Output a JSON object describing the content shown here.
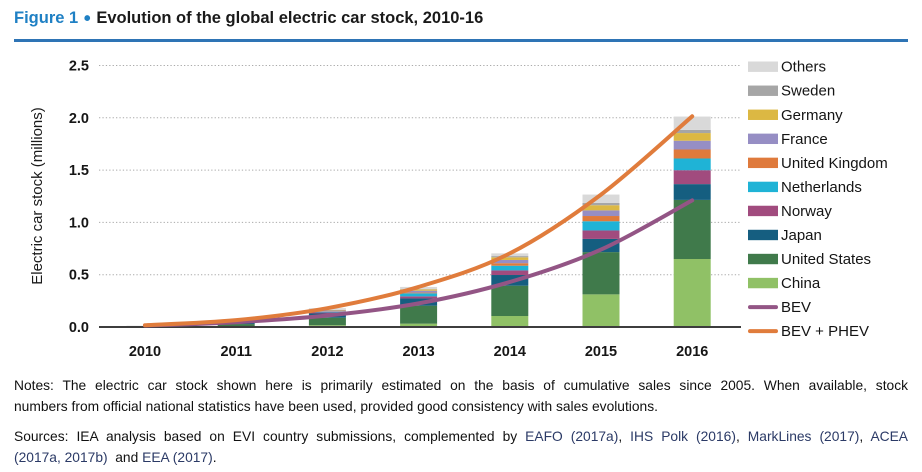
{
  "title": {
    "figure_label": "Figure 1",
    "separator": "•",
    "text": "Evolution of the global electric car stock, 2010-16"
  },
  "accent_colors": {
    "figure_label_blue": "#1F80C4",
    "rule_blue": "#2E74B5"
  },
  "chart_data": {
    "type": "bar",
    "stacked": true,
    "ylabel": "Electric car stock (millions)",
    "categories": [
      "2010",
      "2011",
      "2012",
      "2013",
      "2014",
      "2015",
      "2016"
    ],
    "ylim": [
      0,
      2.5
    ],
    "ytick_step": 0.5,
    "yticks": [
      "0.0",
      "0.5",
      "1.0",
      "1.5",
      "2.0",
      "2.5"
    ],
    "grid": "dotted-horizontal",
    "legend_position": "right",
    "series": [
      {
        "name": "China",
        "color": "#90C166",
        "values": [
          0.001,
          0.007,
          0.017,
          0.032,
          0.105,
          0.312,
          0.65
        ]
      },
      {
        "name": "United States",
        "color": "#407A4B",
        "values": [
          0.004,
          0.021,
          0.072,
          0.172,
          0.29,
          0.404,
          0.565
        ]
      },
      {
        "name": "Japan",
        "color": "#155E80",
        "values": [
          0.003,
          0.016,
          0.04,
          0.069,
          0.102,
          0.126,
          0.151
        ]
      },
      {
        "name": "Norway",
        "color": "#A14B7E",
        "values": [
          0.001,
          0.003,
          0.01,
          0.02,
          0.044,
          0.081,
          0.133
        ]
      },
      {
        "name": "Netherlands",
        "color": "#1FB3D6",
        "values": [
          0.0,
          0.001,
          0.007,
          0.029,
          0.045,
          0.088,
          0.112
        ]
      },
      {
        "name": "United Kingdom",
        "color": "#DF7A3C",
        "values": [
          0.0,
          0.001,
          0.003,
          0.007,
          0.024,
          0.05,
          0.086
        ]
      },
      {
        "name": "France",
        "color": "#968EC4",
        "values": [
          0.0,
          0.003,
          0.009,
          0.018,
          0.031,
          0.054,
          0.084
        ]
      },
      {
        "name": "Germany",
        "color": "#DCB843",
        "values": [
          0.0,
          0.002,
          0.005,
          0.012,
          0.025,
          0.049,
          0.073
        ]
      },
      {
        "name": "Sweden",
        "color": "#A6A6A6",
        "values": [
          0.0,
          0.0,
          0.001,
          0.003,
          0.012,
          0.022,
          0.03
        ]
      },
      {
        "name": "Others",
        "color": "#D9D9D9",
        "values": [
          0.003,
          0.006,
          0.016,
          0.021,
          0.026,
          0.08,
          0.128
        ]
      }
    ],
    "lines": [
      {
        "name": "BEV",
        "color": "#935585",
        "values": [
          0.014,
          0.046,
          0.11,
          0.226,
          0.43,
          0.74,
          1.21
        ]
      },
      {
        "name": "BEV + PHEV",
        "color": "#E07C3C",
        "values": [
          0.017,
          0.066,
          0.18,
          0.383,
          0.704,
          1.266,
          2.014
        ]
      }
    ]
  },
  "notes": {
    "line1": "Notes: The electric car stock shown here is primarily estimated on the basis of cumulative sales since 2005. When available, stock",
    "line2": "numbers from official national statistics have been used, provided good consistency with sales evolutions."
  },
  "sources": {
    "line1_segments": [
      {
        "text": "Sources: IEA analysis based on EVI country submissions, complemented by ",
        "cite": false
      },
      {
        "text": "EAFO (2017a)",
        "cite": true
      },
      {
        "text": ", ",
        "cite": false
      },
      {
        "text": "IHS Polk (2016)",
        "cite": true
      },
      {
        "text": ", ",
        "cite": false
      },
      {
        "text": "MarkLines (2017)",
        "cite": true
      },
      {
        "text": ", ",
        "cite": false
      },
      {
        "text": "ACEA",
        "cite": true
      }
    ],
    "line2_segments": [
      {
        "text": "(2017a, 2017b)",
        "cite": true
      },
      {
        "text": "  and ",
        "cite": false
      },
      {
        "text": "EEA (2017)",
        "cite": true
      },
      {
        "text": ".",
        "cite": false
      }
    ]
  }
}
